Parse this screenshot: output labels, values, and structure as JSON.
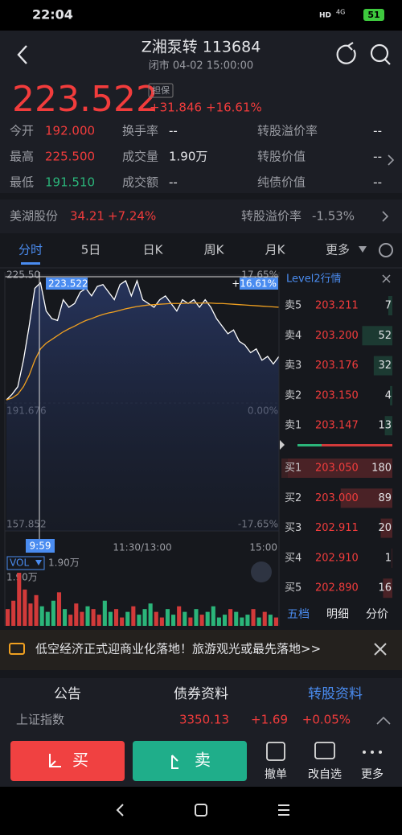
{
  "status_bar": {
    "time": "22:04",
    "hd": "HD",
    "network": "4G",
    "battery": "51"
  },
  "header": {
    "title": "Z湘泵转 113684",
    "subtitle": "闭市 04-02 15:00:00"
  },
  "quote": {
    "price": "223.522",
    "badge": "担保",
    "change": "+31.846",
    "change_pct": "+16.61%"
  },
  "stats": [
    {
      "label": "今开",
      "value": "192.000"
    },
    {
      "label": "换手率",
      "value": "--"
    },
    {
      "label": "转股溢价率",
      "value": "--"
    },
    {
      "label": "最高",
      "value": "225.500"
    },
    {
      "label": "成交量",
      "value": "1.90万"
    },
    {
      "label": "转股价值",
      "value": "--"
    },
    {
      "label": "最低",
      "value": "191.510"
    },
    {
      "label": "成交额",
      "value": "--"
    },
    {
      "label": "纯债价值",
      "value": "--"
    }
  ],
  "underlying": {
    "name": "美湖股份",
    "price": "34.21",
    "change_pct": "+7.24%",
    "premium_label": "转股溢价率",
    "premium": "-1.53%"
  },
  "tabs": [
    "分时",
    "5日",
    "日K",
    "周K",
    "月K",
    "更多"
  ],
  "chart_data": {
    "type": "line",
    "ylim": [
      157.852,
      225.5
    ],
    "yticks": [
      157.852,
      191.676,
      {
        "value": 225.5,
        "label": "225.50"
      }
    ],
    "y2lim": [
      -17.65,
      17.65
    ],
    "y2ticks": [
      {
        "value": -17.65,
        "label": "-17.65%"
      },
      {
        "value": 0,
        "label": "0.00%"
      },
      {
        "value": 17.65,
        "label": "17.65%"
      }
    ],
    "xticks": [
      "11:30/13:00",
      "15:00"
    ],
    "series": [
      {
        "color": "#ffffff",
        "values": [
          192.5,
          194,
          196,
          203,
          212,
          222,
          223.5,
          216,
          214,
          213.5,
          219,
          217,
          218,
          221,
          222,
          220,
          222.5,
          223,
          221,
          219,
          223,
          224,
          220,
          224,
          219,
          218,
          217,
          219,
          220,
          218,
          216,
          219,
          218,
          219,
          217,
          219,
          217,
          214,
          212,
          210,
          211,
          208,
          207,
          205,
          206,
          203,
          204,
          202,
          204
        ]
      },
      {
        "color": "#f0a020",
        "values": [
          192.5,
          193,
          194,
          196,
          199,
          203,
          206,
          207.5,
          208.5,
          209.5,
          210.5,
          211.3,
          212,
          212.8,
          213.5,
          214,
          214.6,
          215.1,
          215.5,
          215.8,
          216.2,
          216.6,
          216.9,
          217.2,
          217.4,
          217.6,
          217.7,
          217.8,
          217.9,
          218,
          218,
          218,
          218.1,
          218.1,
          218.1,
          218.1,
          218.1,
          218,
          218,
          217.9,
          217.8,
          217.7,
          217.6,
          217.5,
          217.4,
          217.3,
          217.2,
          217.1,
          217
        ]
      }
    ],
    "crosshair": {
      "price": "223.522",
      "pct": "+16.61%",
      "time": "9:59"
    }
  },
  "volume": {
    "type": "bar",
    "label": "VOL",
    "value": "1.90万",
    "ylim": [
      0,
      1.9
    ],
    "yticks": [
      {
        "value": 1.9,
        "label": "1.90万"
      }
    ],
    "values": [
      0.6,
      0.9,
      1.9,
      1.3,
      0.8,
      1.1,
      0.7,
      0.5,
      0.9,
      1.2,
      0.6,
      0.4,
      0.8,
      0.5,
      0.7,
      0.6,
      0.4,
      0.9,
      0.5,
      0.6,
      0.3,
      0.5,
      0.7,
      0.4,
      0.6,
      0.8,
      0.5,
      0.3,
      0.6,
      0.4,
      0.7,
      0.5,
      0.3,
      0.6,
      0.4,
      0.5,
      0.7,
      0.3,
      0.4,
      0.6,
      0.5,
      0.3,
      0.4,
      0.6,
      0.3,
      0.5,
      0.4,
      0.3
    ]
  },
  "order_book": {
    "title": "Level2行情",
    "asks": [
      {
        "label": "卖5",
        "price": "203.211",
        "qty": 7
      },
      {
        "label": "卖4",
        "price": "203.200",
        "qty": 52
      },
      {
        "label": "卖3",
        "price": "203.176",
        "qty": 32
      },
      {
        "label": "卖2",
        "price": "203.150",
        "qty": 4
      },
      {
        "label": "卖1",
        "price": "203.147",
        "qty": 13
      }
    ],
    "bids": [
      {
        "label": "买1",
        "price": "203.050",
        "qty": 180
      },
      {
        "label": "买2",
        "price": "203.000",
        "qty": 89
      },
      {
        "label": "买3",
        "price": "202.911",
        "qty": 20
      },
      {
        "label": "买4",
        "price": "202.910",
        "qty": 1
      },
      {
        "label": "买5",
        "price": "202.890",
        "qty": 16
      }
    ],
    "tabs": [
      "五档",
      "明细",
      "分价"
    ]
  },
  "news": "低空经济正式迎商业化落地！旅游观光或最先落地>>",
  "info_tabs": [
    "公告",
    "债券资料",
    "转股资料"
  ],
  "index": {
    "name": "上证指数",
    "value": "3350.13",
    "change": "+1.69",
    "change_pct": "+0.05%"
  },
  "actions": {
    "buy": "买",
    "sell": "卖",
    "tools": [
      "撤单",
      "改自选",
      "更多"
    ]
  }
}
